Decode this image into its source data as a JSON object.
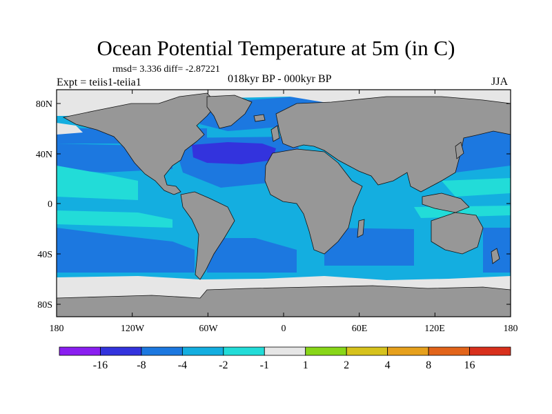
{
  "title": "Ocean Potential Temperature at 5m (in C)",
  "stats": "rmsd= 3.336 diff= -2.87221",
  "experiment": "Expt = teiis1-teiia1",
  "period": "018kyr BP - 000kyr BP",
  "season": "JJA",
  "lat_labels": [
    "80N",
    "40N",
    "0",
    "40S",
    "80S"
  ],
  "lon_labels": [
    "180",
    "120W",
    "60W",
    "0",
    "60E",
    "120E",
    "180"
  ],
  "colorbar": {
    "labels": [
      "-16",
      "-8",
      "-4",
      "-2",
      "-1",
      "1",
      "2",
      "4",
      "8",
      "16"
    ],
    "colors": [
      "#8a1ef0",
      "#3333dd",
      "#1c78e0",
      "#14aee0",
      "#22dcd8",
      "#e6e6e6",
      "#88d618",
      "#d6c21c",
      "#e6a01c",
      "#e2641a",
      "#d8301c"
    ]
  },
  "colors": {
    "land": "#979797",
    "ocean_main": "#14aee0",
    "ocean_warmish": "#22dcd8",
    "ocean_cold": "#1c78e0",
    "ocean_coldest": "#3333dd",
    "ice": "#e6e6e6"
  }
}
